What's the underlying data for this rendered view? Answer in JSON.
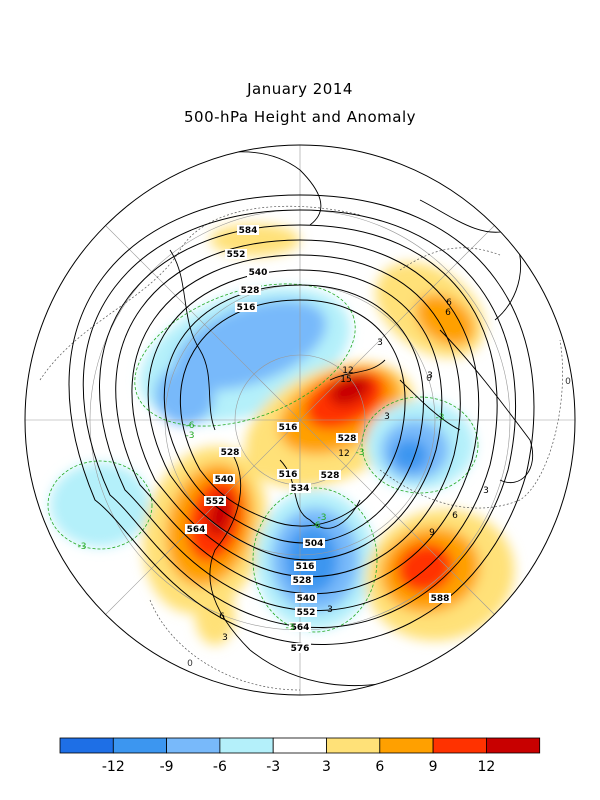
{
  "title": "January 2014",
  "subtitle": "500-hPa Height and Anomaly",
  "colorbar": {
    "colors": [
      "#1e6fe6",
      "#3c96f0",
      "#78b9fa",
      "#b4f0fa",
      "#ffffff",
      "#ffe178",
      "#ffa000",
      "#ff3200",
      "#c80000"
    ],
    "tick_labels": [
      "-12",
      "-9",
      "-6",
      "-3",
      "3",
      "6",
      "9",
      "12"
    ]
  },
  "height_contour_labels": [
    "584",
    "552",
    "540",
    "528",
    "516",
    "516",
    "528",
    "540",
    "552",
    "564",
    "504",
    "516",
    "528",
    "540",
    "552",
    "564",
    "576",
    "588",
    "528",
    "534",
    "516",
    "528"
  ],
  "anomaly_contour_labels": [
    "-6",
    "-3",
    "-3",
    "-6",
    "-3",
    "6",
    "6",
    "3",
    "3",
    "3",
    "0",
    "0",
    "0",
    "-3",
    "6",
    "3",
    "6",
    "9",
    "-3",
    "3",
    "-3",
    "3",
    "12",
    "15",
    "12"
  ],
  "colors": {
    "land_outline": "#000000",
    "height_contour": "#000000",
    "negative_anomaly_line": "#22aa22",
    "zero_anomaly_line": "#555555"
  }
}
